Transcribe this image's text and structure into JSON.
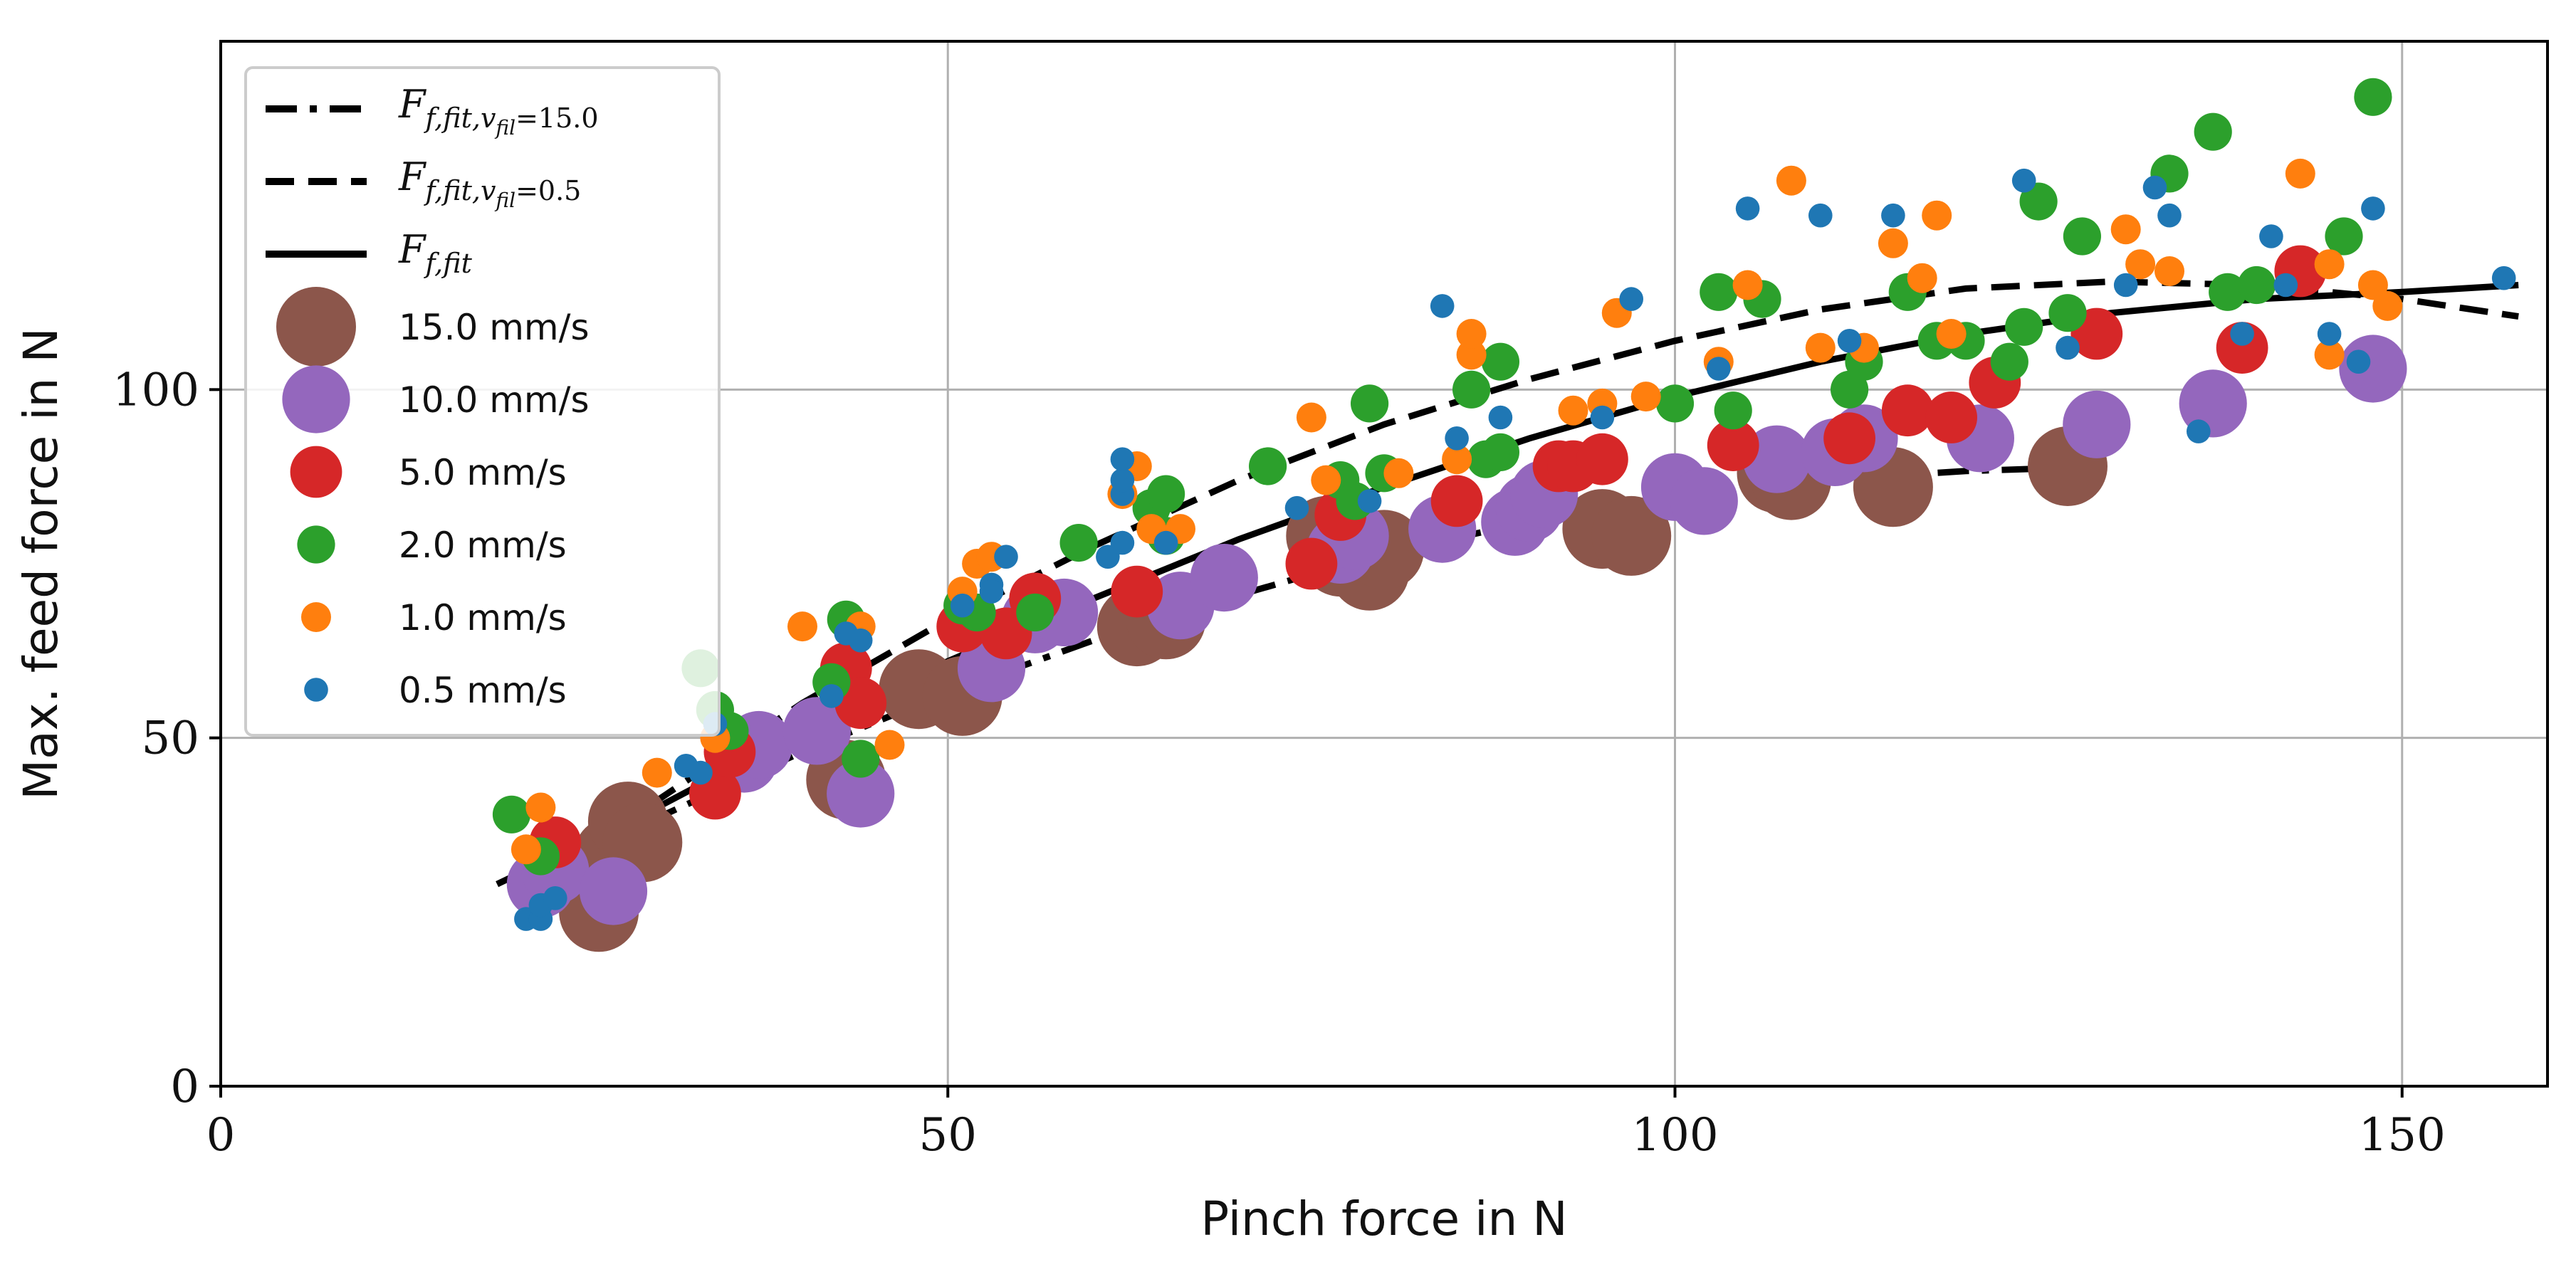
{
  "chart_data": {
    "type": "scatter",
    "title": "",
    "xlabel": "Pinch force in N",
    "ylabel": "Max. feed force in N",
    "xlim": [
      0,
      160
    ],
    "ylim": [
      0,
      150
    ],
    "xticks": [
      0,
      50,
      100,
      150
    ],
    "yticks": [
      0,
      50,
      100
    ],
    "xtick_labels": [
      "0",
      "50",
      "100",
      "150"
    ],
    "ytick_labels": [
      "0",
      "50",
      "100"
    ],
    "grid": true,
    "legend_position": "upper-left",
    "fits": [
      {
        "name": "F_{f,fit,v_{fil}=15.0}",
        "label_main": "F",
        "label_sub": "f,fit,v",
        "label_subsub": "fil",
        "label_tail": "=15.0",
        "style": "dashdot",
        "color": "#000000",
        "x": [
          21.5,
          30,
          40,
          50,
          60,
          70,
          80,
          90,
          100,
          110,
          120,
          127.5
        ],
        "y": [
          29.5,
          38.5,
          48,
          56.5,
          64,
          70.5,
          76.5,
          81,
          84.5,
          87,
          88.3,
          88.8
        ]
      },
      {
        "name": "F_{f,fit,v_{fil}=0.5}",
        "label_main": "F",
        "label_sub": "f,fit,v",
        "label_subsub": "fil",
        "label_tail": "=0.5",
        "style": "dashed",
        "color": "#000000",
        "x": [
          22,
          30,
          40,
          50,
          60,
          70,
          80,
          90,
          100,
          110,
          120,
          130,
          140,
          150,
          158
        ],
        "y": [
          31,
          41,
          55,
          67,
          77.5,
          87,
          95,
          101.5,
          107,
          111.5,
          114.5,
          115.5,
          115,
          113,
          110.5
        ]
      },
      {
        "name": "F_{f,fit}",
        "label_main": "F",
        "label_sub": "f,fit",
        "label_subsub": "",
        "label_tail": "",
        "style": "solid",
        "color": "#000000",
        "x": [
          19,
          30,
          40,
          50,
          60,
          70,
          80,
          90,
          100,
          110,
          120,
          130,
          140,
          150,
          158
        ],
        "y": [
          29,
          40,
          51,
          61,
          70,
          78.5,
          86,
          93,
          99,
          104,
          108,
          111,
          113,
          114,
          115
        ]
      }
    ],
    "series": [
      {
        "name": "15.0 mm/s",
        "color": "#8c564b",
        "size": 4,
        "points": [
          [
            26,
            25
          ],
          [
            27,
            33
          ],
          [
            28,
            38
          ],
          [
            29,
            35
          ],
          [
            43,
            44
          ],
          [
            48,
            57
          ],
          [
            51,
            56
          ],
          [
            63,
            66
          ],
          [
            65,
            67
          ],
          [
            76,
            79
          ],
          [
            77,
            76
          ],
          [
            79,
            74
          ],
          [
            80,
            77
          ],
          [
            95,
            80
          ],
          [
            97,
            79
          ],
          [
            107,
            88
          ],
          [
            108,
            87
          ],
          [
            115,
            86
          ],
          [
            127,
            89
          ]
        ]
      },
      {
        "name": "10.0 mm/s",
        "color": "#9467bd",
        "size": 3.4,
        "points": [
          [
            22,
            29
          ],
          [
            23,
            31
          ],
          [
            27,
            28
          ],
          [
            36,
            47
          ],
          [
            37,
            49
          ],
          [
            41,
            51
          ],
          [
            44,
            42
          ],
          [
            53,
            60
          ],
          [
            56,
            67
          ],
          [
            58,
            68
          ],
          [
            66,
            69
          ],
          [
            69,
            73
          ],
          [
            77,
            77
          ],
          [
            78,
            79
          ],
          [
            84,
            80
          ],
          [
            89,
            81
          ],
          [
            90,
            83
          ],
          [
            91,
            85
          ],
          [
            100,
            86
          ],
          [
            102,
            84
          ],
          [
            107,
            90
          ],
          [
            111,
            91
          ],
          [
            113,
            93
          ],
          [
            121,
            93
          ],
          [
            129,
            95
          ],
          [
            137,
            98
          ],
          [
            148,
            103
          ]
        ]
      },
      {
        "name": "5.0 mm/s",
        "color": "#d62728",
        "size": 2.6,
        "points": [
          [
            23,
            35
          ],
          [
            34,
            42
          ],
          [
            35,
            48
          ],
          [
            43,
            60
          ],
          [
            44,
            55
          ],
          [
            51,
            66
          ],
          [
            54,
            65
          ],
          [
            56,
            70
          ],
          [
            63,
            71
          ],
          [
            75,
            75
          ],
          [
            77,
            82
          ],
          [
            85,
            84
          ],
          [
            92,
            89
          ],
          [
            93,
            89
          ],
          [
            95,
            90
          ],
          [
            104,
            92
          ],
          [
            112,
            93
          ],
          [
            116,
            97
          ],
          [
            119,
            96
          ],
          [
            122,
            101
          ],
          [
            129,
            108
          ],
          [
            139,
            106
          ],
          [
            143,
            117
          ]
        ]
      },
      {
        "name": "2.0 mm/s",
        "color": "#2ca02c",
        "size": 1.9,
        "points": [
          [
            20,
            39
          ],
          [
            22,
            33
          ],
          [
            33,
            60
          ],
          [
            34,
            54
          ],
          [
            35,
            51
          ],
          [
            42,
            58
          ],
          [
            43,
            67
          ],
          [
            44,
            47
          ],
          [
            51,
            69
          ],
          [
            52,
            68
          ],
          [
            56,
            68
          ],
          [
            59,
            78
          ],
          [
            64,
            83
          ],
          [
            65,
            79
          ],
          [
            65,
            85
          ],
          [
            72,
            89
          ],
          [
            77,
            87
          ],
          [
            78,
            84
          ],
          [
            79,
            98
          ],
          [
            80,
            88
          ],
          [
            86,
            100
          ],
          [
            87,
            90
          ],
          [
            88,
            91
          ],
          [
            88,
            104
          ],
          [
            100,
            98
          ],
          [
            103,
            114
          ],
          [
            104,
            97
          ],
          [
            106,
            113
          ],
          [
            112,
            100
          ],
          [
            113,
            104
          ],
          [
            116,
            114
          ],
          [
            118,
            107
          ],
          [
            120,
            107
          ],
          [
            123,
            104
          ],
          [
            124,
            109
          ],
          [
            125,
            127
          ],
          [
            127,
            111
          ],
          [
            128,
            122
          ],
          [
            134,
            131
          ],
          [
            137,
            137
          ],
          [
            138,
            114
          ],
          [
            140,
            115
          ],
          [
            146,
            122
          ],
          [
            148,
            142
          ]
        ]
      },
      {
        "name": "1.0 mm/s",
        "color": "#ff7f0e",
        "size": 1.5,
        "points": [
          [
            21,
            34
          ],
          [
            22,
            40
          ],
          [
            30,
            45
          ],
          [
            34,
            50
          ],
          [
            40,
            66
          ],
          [
            44,
            66
          ],
          [
            46,
            49
          ],
          [
            51,
            71
          ],
          [
            52,
            75
          ],
          [
            53,
            76
          ],
          [
            62,
            85
          ],
          [
            63,
            89
          ],
          [
            64,
            80
          ],
          [
            66,
            80
          ],
          [
            75,
            96
          ],
          [
            76,
            87
          ],
          [
            81,
            88
          ],
          [
            85,
            90
          ],
          [
            86,
            105
          ],
          [
            86,
            108
          ],
          [
            93,
            97
          ],
          [
            95,
            98
          ],
          [
            96,
            111
          ],
          [
            98,
            99
          ],
          [
            103,
            104
          ],
          [
            105,
            115
          ],
          [
            108,
            130
          ],
          [
            110,
            106
          ],
          [
            113,
            106
          ],
          [
            115,
            121
          ],
          [
            117,
            116
          ],
          [
            118,
            125
          ],
          [
            119,
            108
          ],
          [
            131,
            123
          ],
          [
            132,
            118
          ],
          [
            134,
            117
          ],
          [
            143,
            131
          ],
          [
            145,
            118
          ],
          [
            145,
            105
          ],
          [
            148,
            115
          ],
          [
            149,
            112
          ]
        ]
      },
      {
        "name": "0.5 mm/s",
        "color": "#1f77b4",
        "size": 1.2,
        "points": [
          [
            21,
            24
          ],
          [
            22,
            24
          ],
          [
            22,
            26
          ],
          [
            23,
            27
          ],
          [
            32,
            46
          ],
          [
            33,
            45
          ],
          [
            34,
            52
          ],
          [
            42,
            56
          ],
          [
            43,
            65
          ],
          [
            44,
            64
          ],
          [
            51,
            69
          ],
          [
            53,
            72
          ],
          [
            53,
            71
          ],
          [
            54,
            76
          ],
          [
            61,
            76
          ],
          [
            62,
            85
          ],
          [
            62,
            87
          ],
          [
            62,
            90
          ],
          [
            62,
            78
          ],
          [
            65,
            78
          ],
          [
            74,
            83
          ],
          [
            79,
            84
          ],
          [
            84,
            112
          ],
          [
            85,
            93
          ],
          [
            88,
            96
          ],
          [
            95,
            96
          ],
          [
            97,
            113
          ],
          [
            103,
            103
          ],
          [
            105,
            126
          ],
          [
            110,
            125
          ],
          [
            112,
            107
          ],
          [
            115,
            125
          ],
          [
            124,
            130
          ],
          [
            127,
            106
          ],
          [
            131,
            115
          ],
          [
            133,
            129
          ],
          [
            134,
            125
          ],
          [
            136,
            94
          ],
          [
            139,
            108
          ],
          [
            141,
            122
          ],
          [
            142,
            115
          ],
          [
            145,
            108
          ],
          [
            147,
            104
          ],
          [
            148,
            126
          ],
          [
            157,
            116
          ]
        ]
      }
    ]
  }
}
